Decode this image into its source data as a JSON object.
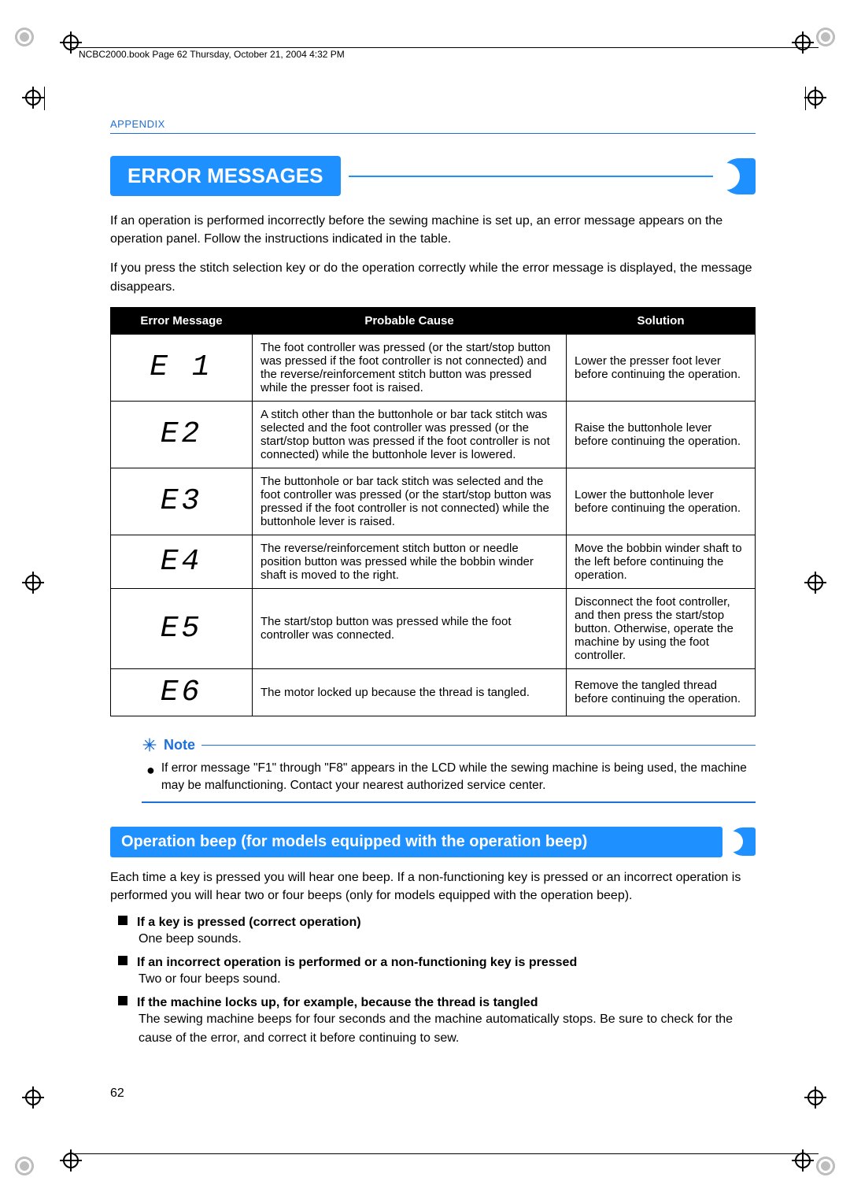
{
  "header": {
    "text": "NCBC2000.book  Page 62  Thursday, October 21, 2004  4:32 PM"
  },
  "appendix_label": "APPENDIX",
  "title": "ERROR MESSAGES",
  "intro_p1": "If an operation is performed incorrectly before the sewing machine is set up, an error message appears on the operation panel. Follow the instructions indicated in the table.",
  "intro_p2": "If you press the stitch selection key or do the operation correctly while the error message is displayed, the message disappears.",
  "table": {
    "headers": [
      "Error Message",
      "Probable Cause",
      "Solution"
    ],
    "rows": [
      {
        "code": "E1",
        "seg": "E 1",
        "cause": "The foot controller was pressed (or the start/stop button was pressed if the foot controller is not connected) and the reverse/reinforcement stitch button was pressed while the presser foot is raised.",
        "solution": "Lower the presser foot lever before continuing the operation."
      },
      {
        "code": "E2",
        "seg": "E2",
        "cause": "A stitch other than the buttonhole or bar tack stitch was selected and the foot controller was pressed (or the start/stop button was pressed if the foot controller is not connected) while the buttonhole lever is lowered.",
        "solution": "Raise the buttonhole lever before continuing the operation."
      },
      {
        "code": "E3",
        "seg": "E3",
        "cause": "The buttonhole or bar tack stitch was selected and the foot controller was pressed (or the start/stop button was pressed if the foot controller is not connected) while the buttonhole lever is raised.",
        "solution": "Lower the buttonhole lever before continuing the operation."
      },
      {
        "code": "E4",
        "seg": "E4",
        "cause": "The reverse/reinforcement stitch button or needle position button was pressed while the bobbin winder shaft is moved to the right.",
        "solution": "Move the bobbin winder shaft to the left before continuing the operation."
      },
      {
        "code": "E5",
        "seg": "E5",
        "cause": "The start/stop button was pressed while the foot controller was connected.",
        "solution": "Disconnect the foot controller, and then press the start/stop button. Otherwise, operate the machine by using the foot controller."
      },
      {
        "code": "E6",
        "seg": "E6",
        "cause": "The motor locked up because the thread is tangled.",
        "solution": "Remove the tangled thread before continuing the operation."
      }
    ]
  },
  "note": {
    "label": "Note",
    "body": "If error message \"F1\" through \"F8\" appears in the LCD while the sewing machine is being used, the machine may be malfunctioning. Contact your nearest authorized service center."
  },
  "section_title": "Operation beep (for models equipped with the operation beep)",
  "section_intro": "Each time a key is pressed you will hear one beep. If a non-functioning key is pressed or an incorrect operation is performed you will hear two or four beeps (only for models equipped with the operation beep).",
  "bullets": [
    {
      "title": "If a key is pressed (correct operation)",
      "body": "One beep sounds."
    },
    {
      "title": "If an incorrect operation is performed or a non-functioning key is pressed",
      "body": "Two or four beeps sound."
    },
    {
      "title": "If the machine locks up, for example, because the thread is tangled",
      "body": "The sewing machine beeps for four seconds and the machine automatically stops. Be sure to check for the cause of the error, and correct it before continuing to sew."
    }
  ],
  "page_number": "62",
  "colors": {
    "accent": "#1e90ff",
    "accent_text": "#1e6fd9"
  }
}
